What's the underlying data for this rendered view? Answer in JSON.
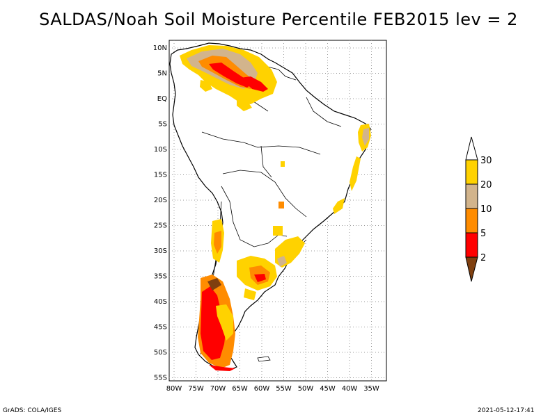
{
  "title": "SALDAS/Noah Soil Moisture Percentile FEB2015 lev = 2",
  "lat_ticks": [
    "10N",
    "5N",
    "EQ",
    "5S",
    "10S",
    "15S",
    "20S",
    "25S",
    "30S",
    "35S",
    "40S",
    "45S",
    "50S",
    "55S"
  ],
  "lon_ticks": [
    "80W",
    "75W",
    "70W",
    "65W",
    "60W",
    "55W",
    "50W",
    "45W",
    "40W",
    "35W"
  ],
  "colorbar": {
    "levels": [
      "30",
      "20",
      "10",
      "5",
      "2"
    ],
    "colors": {
      "above_30": "#ffffff",
      "20_30": "#ffd200",
      "10_20": "#d2b48c",
      "5_10": "#ff8c00",
      "2_5": "#ff0000",
      "below_2": "#7f3f0f"
    }
  },
  "footer": {
    "left": "GrADS: COLA/IGES",
    "right": "2021-05-12-17:41"
  }
}
